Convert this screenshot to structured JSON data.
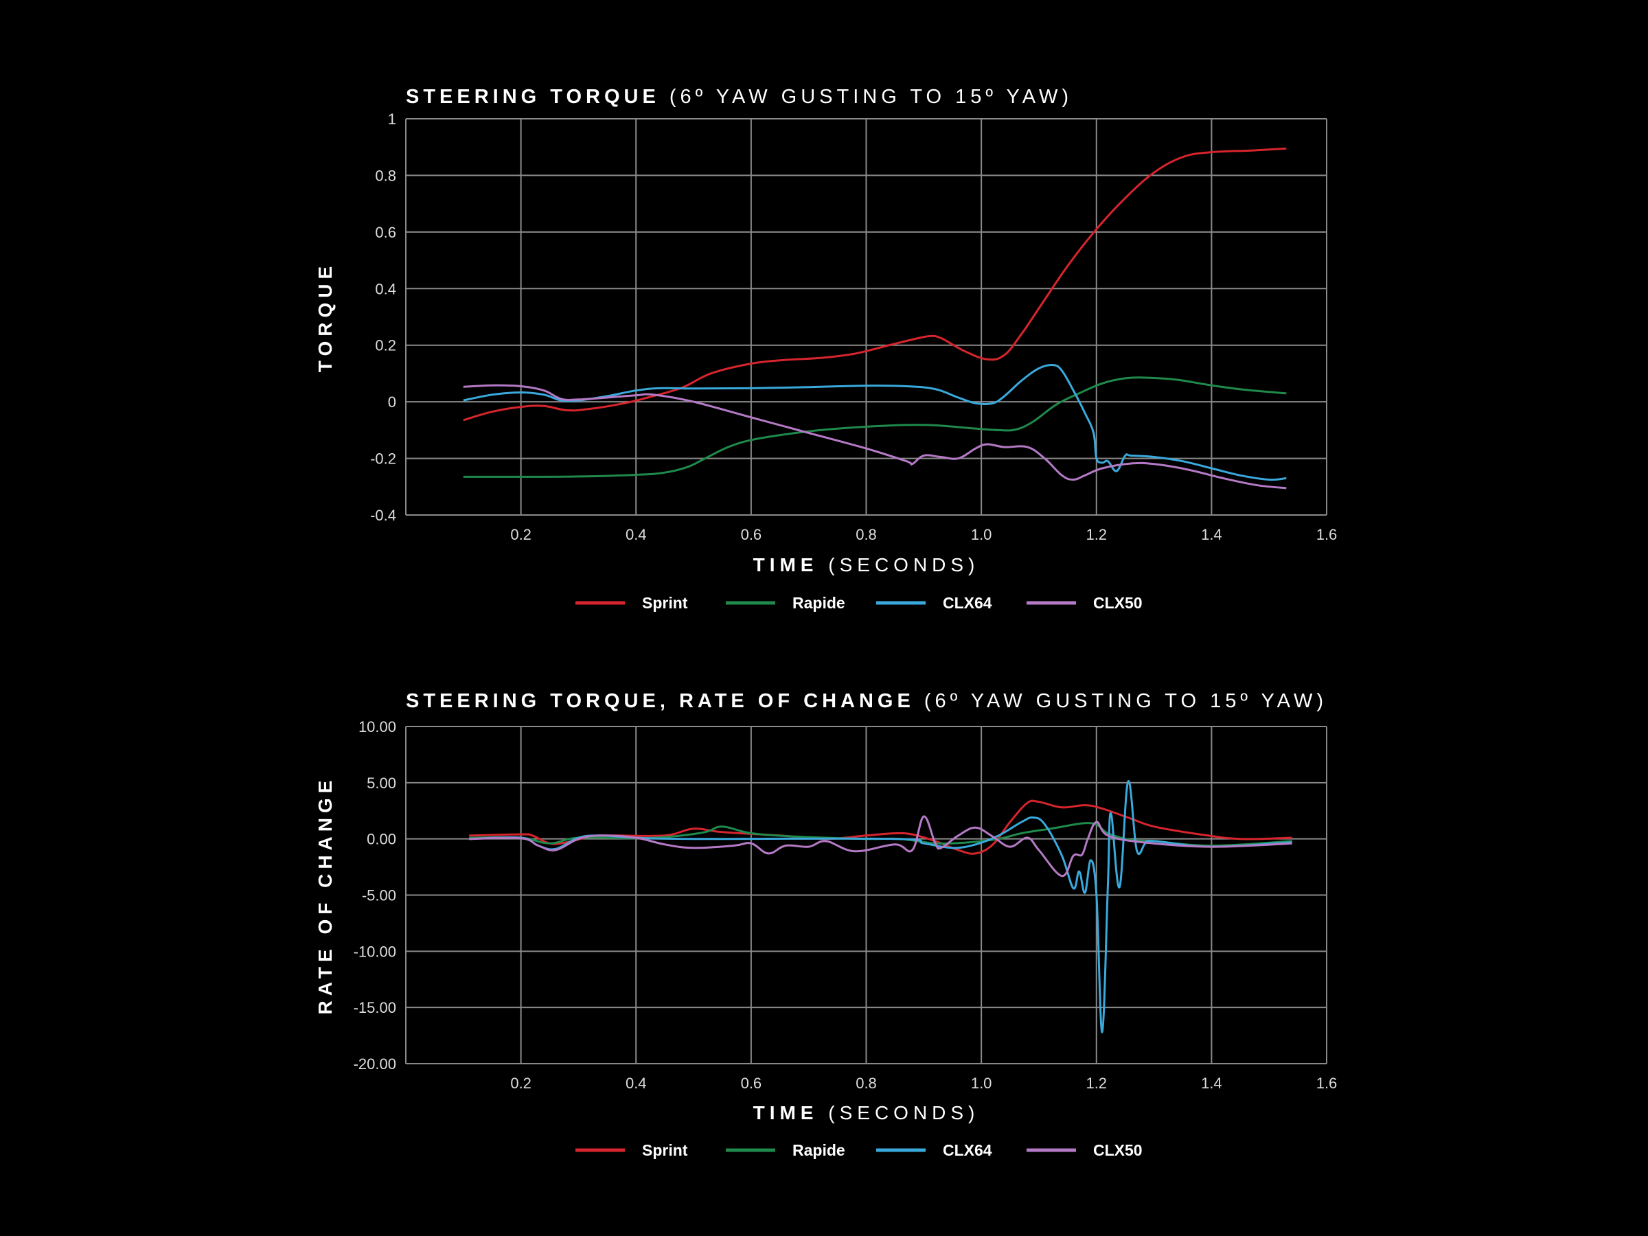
{
  "colors": {
    "background": "#000000",
    "grid": "#8a8a8a",
    "Sprint": "#d7252d",
    "Rapide": "#1f8a4c",
    "CLX64": "#3aa9dc",
    "CLX50": "#b57ac6"
  },
  "chart_data": [
    {
      "type": "line",
      "title_bold": "STEERING TORQUE",
      "title_rest": "(6º YAW GUSTING TO 15º YAW)",
      "xlabel_bold": "TIME",
      "xlabel_rest": "(SECONDS)",
      "ylabel": "TORQUE",
      "xlim": [
        0,
        1.6
      ],
      "ylim": [
        -0.4,
        1
      ],
      "xticks": [
        0.2,
        0.4,
        0.6,
        0.8,
        1.0,
        1.2,
        1.4,
        1.6
      ],
      "xtick_labels": [
        "0.2",
        "0.4",
        "0.6",
        "0.8",
        "1.0",
        "1.2",
        "1.4",
        "1.6"
      ],
      "yticks": [
        -0.4,
        -0.2,
        0,
        0.2,
        0.4,
        0.6,
        0.8,
        1
      ],
      "ytick_labels": [
        "-0.4",
        "-0.2",
        "0",
        "0.2",
        "0.4",
        "0.6",
        "0.8",
        "1"
      ],
      "grid": true,
      "legend": "bottom-center",
      "series": [
        {
          "name": "Sprint",
          "points": [
            [
              0.1,
              -0.065
            ],
            [
              0.15,
              -0.035
            ],
            [
              0.2,
              -0.018
            ],
            [
              0.24,
              -0.015
            ],
            [
              0.28,
              -0.03
            ],
            [
              0.32,
              -0.025
            ],
            [
              0.38,
              -0.005
            ],
            [
              0.42,
              0.015
            ],
            [
              0.48,
              0.05
            ],
            [
              0.53,
              0.1
            ],
            [
              0.6,
              0.135
            ],
            [
              0.66,
              0.148
            ],
            [
              0.72,
              0.155
            ],
            [
              0.78,
              0.17
            ],
            [
              0.84,
              0.2
            ],
            [
              0.88,
              0.22
            ],
            [
              0.91,
              0.232
            ],
            [
              0.93,
              0.225
            ],
            [
              0.97,
              0.18
            ],
            [
              1.01,
              0.15
            ],
            [
              1.04,
              0.165
            ],
            [
              1.07,
              0.24
            ],
            [
              1.1,
              0.33
            ],
            [
              1.15,
              0.48
            ],
            [
              1.2,
              0.61
            ],
            [
              1.25,
              0.72
            ],
            [
              1.3,
              0.81
            ],
            [
              1.35,
              0.865
            ],
            [
              1.4,
              0.882
            ],
            [
              1.47,
              0.888
            ],
            [
              1.53,
              0.895
            ]
          ]
        },
        {
          "name": "Rapide",
          "points": [
            [
              0.1,
              -0.265
            ],
            [
              0.2,
              -0.265
            ],
            [
              0.3,
              -0.264
            ],
            [
              0.4,
              -0.258
            ],
            [
              0.45,
              -0.25
            ],
            [
              0.49,
              -0.23
            ],
            [
              0.52,
              -0.2
            ],
            [
              0.56,
              -0.16
            ],
            [
              0.6,
              -0.135
            ],
            [
              0.66,
              -0.115
            ],
            [
              0.72,
              -0.1
            ],
            [
              0.8,
              -0.088
            ],
            [
              0.87,
              -0.082
            ],
            [
              0.92,
              -0.083
            ],
            [
              0.98,
              -0.093
            ],
            [
              1.03,
              -0.1
            ],
            [
              1.06,
              -0.098
            ],
            [
              1.09,
              -0.07
            ],
            [
              1.13,
              -0.01
            ],
            [
              1.17,
              0.03
            ],
            [
              1.21,
              0.065
            ],
            [
              1.25,
              0.083
            ],
            [
              1.29,
              0.085
            ],
            [
              1.34,
              0.078
            ],
            [
              1.4,
              0.058
            ],
            [
              1.46,
              0.042
            ],
            [
              1.53,
              0.03
            ]
          ]
        },
        {
          "name": "CLX64",
          "points": [
            [
              0.1,
              0.005
            ],
            [
              0.15,
              0.025
            ],
            [
              0.2,
              0.033
            ],
            [
              0.24,
              0.025
            ],
            [
              0.27,
              0.005
            ],
            [
              0.3,
              0.005
            ],
            [
              0.35,
              0.02
            ],
            [
              0.4,
              0.04
            ],
            [
              0.44,
              0.048
            ],
            [
              0.5,
              0.047
            ],
            [
              0.6,
              0.048
            ],
            [
              0.7,
              0.052
            ],
            [
              0.8,
              0.057
            ],
            [
              0.87,
              0.055
            ],
            [
              0.92,
              0.045
            ],
            [
              0.96,
              0.015
            ],
            [
              0.99,
              -0.005
            ],
            [
              1.02,
              -0.005
            ],
            [
              1.04,
              0.02
            ],
            [
              1.07,
              0.075
            ],
            [
              1.1,
              0.118
            ],
            [
              1.125,
              0.13
            ],
            [
              1.14,
              0.11
            ],
            [
              1.16,
              0.04
            ],
            [
              1.18,
              -0.04
            ],
            [
              1.195,
              -0.11
            ],
            [
              1.2,
              -0.2
            ],
            [
              1.21,
              -0.215
            ],
            [
              1.22,
              -0.21
            ],
            [
              1.235,
              -0.245
            ],
            [
              1.25,
              -0.19
            ],
            [
              1.26,
              -0.19
            ],
            [
              1.3,
              -0.195
            ],
            [
              1.35,
              -0.21
            ],
            [
              1.4,
              -0.235
            ],
            [
              1.45,
              -0.26
            ],
            [
              1.5,
              -0.275
            ],
            [
              1.53,
              -0.27
            ]
          ]
        },
        {
          "name": "CLX50",
          "points": [
            [
              0.1,
              0.053
            ],
            [
              0.15,
              0.058
            ],
            [
              0.2,
              0.055
            ],
            [
              0.24,
              0.04
            ],
            [
              0.27,
              0.01
            ],
            [
              0.3,
              0.008
            ],
            [
              0.35,
              0.015
            ],
            [
              0.4,
              0.023
            ],
            [
              0.43,
              0.025
            ],
            [
              0.5,
              0.0
            ],
            [
              0.6,
              -0.055
            ],
            [
              0.7,
              -0.11
            ],
            [
              0.8,
              -0.165
            ],
            [
              0.87,
              -0.21
            ],
            [
              0.88,
              -0.22
            ],
            [
              0.9,
              -0.19
            ],
            [
              0.93,
              -0.195
            ],
            [
              0.96,
              -0.2
            ],
            [
              0.99,
              -0.165
            ],
            [
              1.01,
              -0.15
            ],
            [
              1.04,
              -0.16
            ],
            [
              1.08,
              -0.16
            ],
            [
              1.11,
              -0.2
            ],
            [
              1.14,
              -0.26
            ],
            [
              1.16,
              -0.275
            ],
            [
              1.18,
              -0.26
            ],
            [
              1.21,
              -0.235
            ],
            [
              1.26,
              -0.218
            ],
            [
              1.3,
              -0.22
            ],
            [
              1.36,
              -0.24
            ],
            [
              1.42,
              -0.27
            ],
            [
              1.48,
              -0.295
            ],
            [
              1.53,
              -0.305
            ]
          ]
        }
      ]
    },
    {
      "type": "line",
      "title_bold": "STEERING TORQUE, RATE OF CHANGE",
      "title_rest": "(6º YAW GUSTING TO 15º YAW)",
      "xlabel_bold": "TIME",
      "xlabel_rest": "(SECONDS)",
      "ylabel": "RATE OF CHANGE",
      "xlim": [
        0,
        1.6
      ],
      "ylim": [
        -20,
        10
      ],
      "xticks": [
        0.2,
        0.4,
        0.6,
        0.8,
        1.0,
        1.2,
        1.4,
        1.6
      ],
      "xtick_labels": [
        "0.2",
        "0.4",
        "0.6",
        "0.8",
        "1.0",
        "1.2",
        "1.4",
        "1.6"
      ],
      "yticks": [
        -20,
        -15,
        -10,
        -5,
        0,
        5,
        10
      ],
      "ytick_labels": [
        "-20.00",
        "-15.00",
        "-10.00",
        "-5.00",
        "0.00",
        "5.00",
        "10.00"
      ],
      "grid": true,
      "legend": "bottom-center",
      "series": [
        {
          "name": "Sprint",
          "points": [
            [
              0.11,
              0.3
            ],
            [
              0.2,
              0.4
            ],
            [
              0.22,
              0.3
            ],
            [
              0.25,
              -0.4
            ],
            [
              0.28,
              -0.3
            ],
            [
              0.32,
              0.2
            ],
            [
              0.36,
              0.3
            ],
            [
              0.45,
              0.3
            ],
            [
              0.5,
              0.9
            ],
            [
              0.55,
              0.6
            ],
            [
              0.65,
              0.3
            ],
            [
              0.73,
              0
            ],
            [
              0.8,
              0.3
            ],
            [
              0.85,
              0.5
            ],
            [
              0.88,
              0.4
            ],
            [
              0.92,
              -0.2
            ],
            [
              0.96,
              -1.0
            ],
            [
              0.99,
              -1.3
            ],
            [
              1.02,
              -0.5
            ],
            [
              1.05,
              1.5
            ],
            [
              1.08,
              3.2
            ],
            [
              1.1,
              3.3
            ],
            [
              1.14,
              2.8
            ],
            [
              1.18,
              3.0
            ],
            [
              1.21,
              2.7
            ],
            [
              1.26,
              1.8
            ],
            [
              1.3,
              1.1
            ],
            [
              1.38,
              0.4
            ],
            [
              1.45,
              0.0
            ],
            [
              1.54,
              0.1
            ]
          ]
        },
        {
          "name": "Rapide",
          "points": [
            [
              0.11,
              0.1
            ],
            [
              0.2,
              0.1
            ],
            [
              0.25,
              -0.4
            ],
            [
              0.3,
              0.1
            ],
            [
              0.4,
              0.05
            ],
            [
              0.46,
              0.2
            ],
            [
              0.52,
              0.6
            ],
            [
              0.55,
              1.1
            ],
            [
              0.6,
              0.5
            ],
            [
              0.68,
              0.2
            ],
            [
              0.8,
              0
            ],
            [
              0.86,
              0
            ],
            [
              0.92,
              -0.4
            ],
            [
              0.98,
              -0.3
            ],
            [
              1.03,
              0
            ],
            [
              1.07,
              0.5
            ],
            [
              1.12,
              0.9
            ],
            [
              1.19,
              1.4
            ],
            [
              1.22,
              0.5
            ],
            [
              1.26,
              -0.1
            ],
            [
              1.3,
              -0.2
            ],
            [
              1.4,
              -0.6
            ],
            [
              1.54,
              -0.2
            ]
          ]
        },
        {
          "name": "CLX64",
          "points": [
            [
              0.11,
              0.0
            ],
            [
              0.2,
              0.1
            ],
            [
              0.23,
              -0.6
            ],
            [
              0.26,
              -0.9
            ],
            [
              0.3,
              0.1
            ],
            [
              0.34,
              0.3
            ],
            [
              0.4,
              0.1
            ],
            [
              0.5,
              0
            ],
            [
              0.85,
              0
            ],
            [
              0.9,
              -0.4
            ],
            [
              0.95,
              -0.8
            ],
            [
              0.99,
              -0.5
            ],
            [
              1.03,
              0.3
            ],
            [
              1.07,
              1.5
            ],
            [
              1.09,
              1.9
            ],
            [
              1.11,
              1.3
            ],
            [
              1.14,
              -1.5
            ],
            [
              1.16,
              -4.4
            ],
            [
              1.17,
              -2.9
            ],
            [
              1.18,
              -4.8
            ],
            [
              1.19,
              -1.9
            ],
            [
              1.2,
              -5
            ],
            [
              1.21,
              -17.2
            ],
            [
              1.22,
              -4
            ],
            [
              1.225,
              2.3
            ],
            [
              1.24,
              -4.3
            ],
            [
              1.255,
              5.1
            ],
            [
              1.27,
              -1.0
            ],
            [
              1.285,
              -0.4
            ],
            [
              1.3,
              -0.2
            ],
            [
              1.4,
              -0.7
            ],
            [
              1.54,
              -0.3
            ]
          ]
        },
        {
          "name": "CLX50",
          "points": [
            [
              0.11,
              0
            ],
            [
              0.2,
              0.05
            ],
            [
              0.23,
              -0.6
            ],
            [
              0.26,
              -1.0
            ],
            [
              0.3,
              0
            ],
            [
              0.34,
              0.3
            ],
            [
              0.4,
              0.1
            ],
            [
              0.45,
              -0.5
            ],
            [
              0.5,
              -0.8
            ],
            [
              0.57,
              -0.6
            ],
            [
              0.6,
              -0.4
            ],
            [
              0.63,
              -1.3
            ],
            [
              0.66,
              -0.6
            ],
            [
              0.7,
              -0.7
            ],
            [
              0.73,
              -0.2
            ],
            [
              0.78,
              -1.1
            ],
            [
              0.85,
              -0.5
            ],
            [
              0.88,
              -1.0
            ],
            [
              0.9,
              2.0
            ],
            [
              0.92,
              -0.4
            ],
            [
              0.93,
              -0.8
            ],
            [
              0.96,
              0.3
            ],
            [
              0.99,
              1.0
            ],
            [
              1.02,
              0.2
            ],
            [
              1.05,
              -0.7
            ],
            [
              1.08,
              0.1
            ],
            [
              1.1,
              -1.0
            ],
            [
              1.14,
              -3.3
            ],
            [
              1.16,
              -1.5
            ],
            [
              1.175,
              -1.4
            ],
            [
              1.185,
              0
            ],
            [
              1.2,
              1.5
            ],
            [
              1.22,
              0.3
            ],
            [
              1.28,
              -0.3
            ],
            [
              1.4,
              -0.7
            ],
            [
              1.54,
              -0.4
            ]
          ]
        }
      ]
    }
  ]
}
